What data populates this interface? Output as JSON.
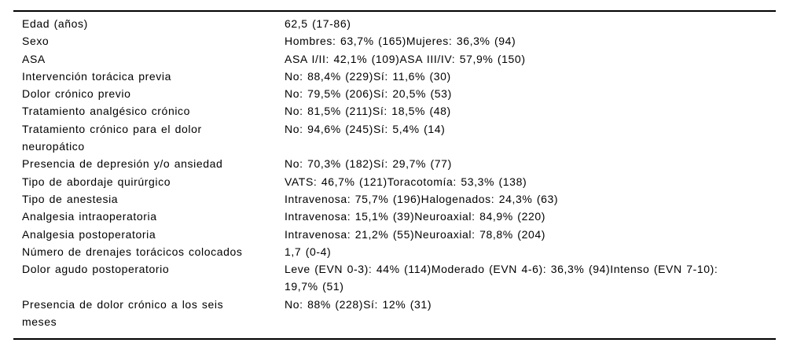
{
  "table": {
    "rows": [
      {
        "label": "Edad (años)",
        "value": "62,5 (17-86)"
      },
      {
        "label": "Sexo",
        "value": "Hombres: 63,7% (165)Mujeres: 36,3% (94)"
      },
      {
        "label": "ASA",
        "value": "ASA I/II: 42,1% (109)ASA III/IV: 57,9% (150)"
      },
      {
        "label": "Intervención torácica previa",
        "value": "No: 88,4% (229)Sí: 11,6% (30)"
      },
      {
        "label": "Dolor crónico previo",
        "value": "No: 79,5% (206)Sí: 20,5% (53)"
      },
      {
        "label": "Tratamiento analgésico crónico",
        "value": "No: 81,5% (211)Sí: 18,5% (48)"
      },
      {
        "label": "Tratamiento crónico para el dolor neuropático",
        "value": "No: 94,6% (245)Sí: 5,4% (14)"
      },
      {
        "label": "Presencia de depresión y/o ansiedad",
        "value": "No: 70,3% (182)Sí: 29,7% (77)"
      },
      {
        "label": "Tipo de abordaje quirúrgico",
        "value": "VATS: 46,7% (121)Toracotomía: 53,3% (138)"
      },
      {
        "label": "Tipo de anestesia",
        "value": "Intravenosa: 75,7% (196)Halogenados: 24,3% (63)"
      },
      {
        "label": "Analgesia intraoperatoria",
        "value": "Intravenosa: 15,1% (39)Neuroaxial: 84,9% (220)"
      },
      {
        "label": "Analgesia postoperatoria",
        "value": "Intravenosa: 21,2% (55)Neuroaxial: 78,8% (204)"
      },
      {
        "label": "Número de drenajes torácicos colocados",
        "value": "1,7 (0-4)"
      },
      {
        "label": "Dolor agudo postoperatorio",
        "value": "Leve (EVN 0-3): 44% (114)Moderado (EVN 4-6): 36,3% (94)Intenso (EVN 7-10): 19,7% (51)"
      },
      {
        "label": "Presencia de dolor crónico a los seis meses",
        "value": "No: 88% (228)Sí: 12% (31)"
      }
    ]
  },
  "colors": {
    "text": "#000000",
    "background": "#ffffff",
    "rule": "#000000"
  }
}
